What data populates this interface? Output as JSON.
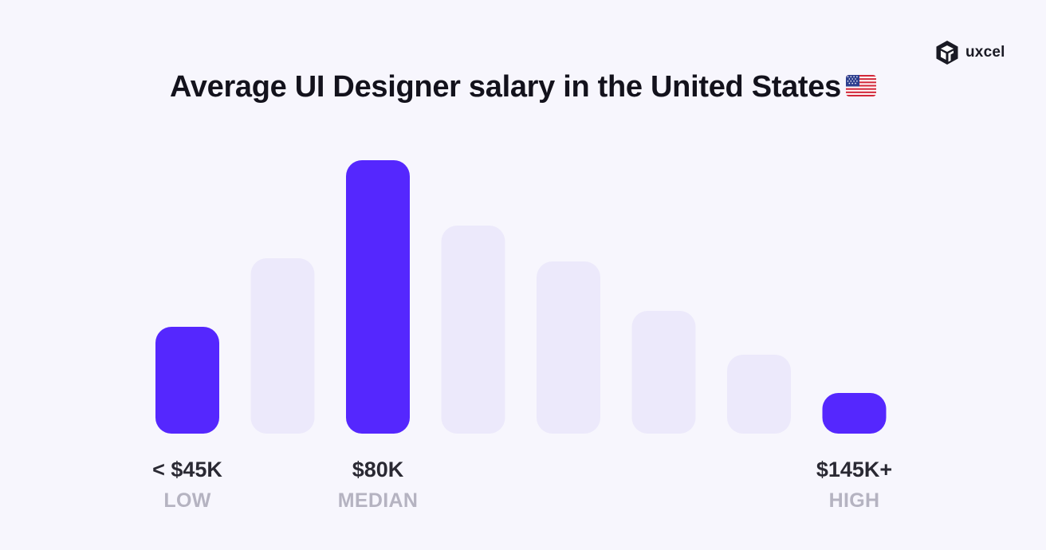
{
  "brand": {
    "logo_text": "uxcel",
    "logo_icon": "uxcel-cube-icon"
  },
  "title": "Average UI Designer salary in the United States",
  "title_icon": "us-flag-icon",
  "colors": {
    "highlight": "#5527fe",
    "muted": "#ece9fb",
    "background": "#f7f6fd",
    "value_text": "#2a2933",
    "caption_text": "#b5b3c1"
  },
  "chart_data": {
    "type": "bar",
    "title": "Average UI Designer salary in the United States",
    "xlabel": "",
    "ylabel": "",
    "grid": false,
    "bars": [
      {
        "value": 39,
        "highlight": true,
        "label": "< $45K",
        "caption": "LOW"
      },
      {
        "value": 64,
        "highlight": false,
        "label": "",
        "caption": ""
      },
      {
        "value": 100,
        "highlight": true,
        "label": "$80K",
        "caption": "MEDIAN"
      },
      {
        "value": 76,
        "highlight": false,
        "label": "",
        "caption": ""
      },
      {
        "value": 63,
        "highlight": false,
        "label": "",
        "caption": ""
      },
      {
        "value": 45,
        "highlight": false,
        "label": "",
        "caption": ""
      },
      {
        "value": 29,
        "highlight": false,
        "label": "",
        "caption": ""
      },
      {
        "value": 15,
        "highlight": true,
        "label": "$145K+",
        "caption": "HIGH"
      }
    ]
  }
}
